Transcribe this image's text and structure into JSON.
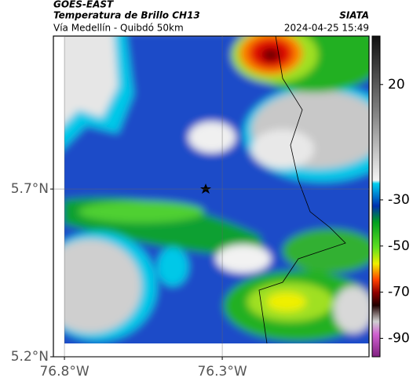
{
  "header": {
    "title": "GOES-EAST",
    "subtitle": "Temperatura de Brillo CH13",
    "source": "SIATA",
    "route": "Vía Medellín - Quibdó 50km",
    "timestamp": "2024-04-25 15:49"
  },
  "map": {
    "latlim": [
      5.2,
      6.156
    ],
    "lonlim": [
      -76.835,
      -75.835
    ],
    "latticks": [
      {
        "value": 5.2,
        "label": "5.2°N"
      },
      {
        "value": 5.7,
        "label": "5.7°N"
      }
    ],
    "lonticks": [
      {
        "value": -76.8,
        "label": "76.8°W"
      },
      {
        "value": -76.3,
        "label": "76.3°W"
      }
    ]
  },
  "colorbar": {
    "lim": [
      -98,
      41
    ],
    "ticks": [
      20,
      -30,
      -50,
      -70,
      -90
    ]
  }
}
